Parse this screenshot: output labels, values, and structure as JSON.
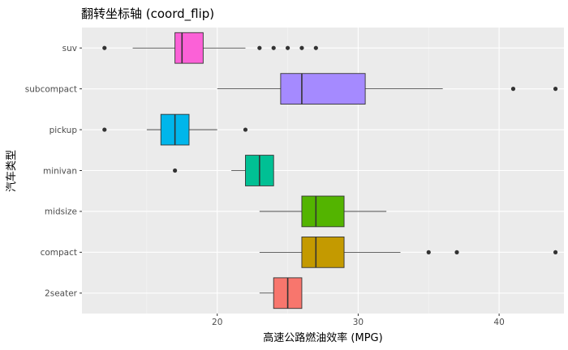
{
  "chart_data": {
    "type": "boxplot",
    "orientation": "horizontal",
    "title": "翻转坐标轴 (coord_flip)",
    "xlabel": "高速公路燃油效率 (MPG)",
    "ylabel": "汽车类型",
    "xlim": [
      10.4,
      44.6
    ],
    "x_ticks": [
      20,
      30,
      40
    ],
    "x_tick_labels": [
      "20",
      "30",
      "40"
    ],
    "grid": true,
    "legend": "none",
    "categories": [
      "2seater",
      "compact",
      "midsize",
      "minivan",
      "pickup",
      "subcompact",
      "suv"
    ],
    "boxes": [
      {
        "category": "2seater",
        "whisker_low": 23,
        "q1": 24,
        "median": 25,
        "q3": 26,
        "whisker_high": 26,
        "outliers": [],
        "color": "#F8766D"
      },
      {
        "category": "compact",
        "whisker_low": 23,
        "q1": 26,
        "median": 27,
        "q3": 29,
        "whisker_high": 33,
        "outliers": [
          35,
          37,
          44
        ],
        "color": "#C49A00"
      },
      {
        "category": "midsize",
        "whisker_low": 23,
        "q1": 26,
        "median": 27,
        "q3": 29,
        "whisker_high": 32,
        "outliers": [],
        "color": "#53B400"
      },
      {
        "category": "minivan",
        "whisker_low": 21,
        "q1": 22,
        "median": 23,
        "q3": 24,
        "whisker_high": 24,
        "outliers": [
          17
        ],
        "color": "#00C094"
      },
      {
        "category": "pickup",
        "whisker_low": 15,
        "q1": 16,
        "median": 17,
        "q3": 18,
        "whisker_high": 20,
        "outliers": [
          12,
          22
        ],
        "color": "#00B6EB"
      },
      {
        "category": "subcompact",
        "whisker_low": 20,
        "q1": 24.5,
        "median": 26,
        "q3": 30.5,
        "whisker_high": 36,
        "outliers": [
          41,
          44
        ],
        "color": "#A58AFF"
      },
      {
        "category": "suv",
        "whisker_low": 14,
        "q1": 17,
        "median": 17.5,
        "q3": 19,
        "whisker_high": 22,
        "outliers": [
          12,
          23,
          24,
          25,
          26,
          27
        ],
        "color": "#FB61D7"
      }
    ]
  }
}
